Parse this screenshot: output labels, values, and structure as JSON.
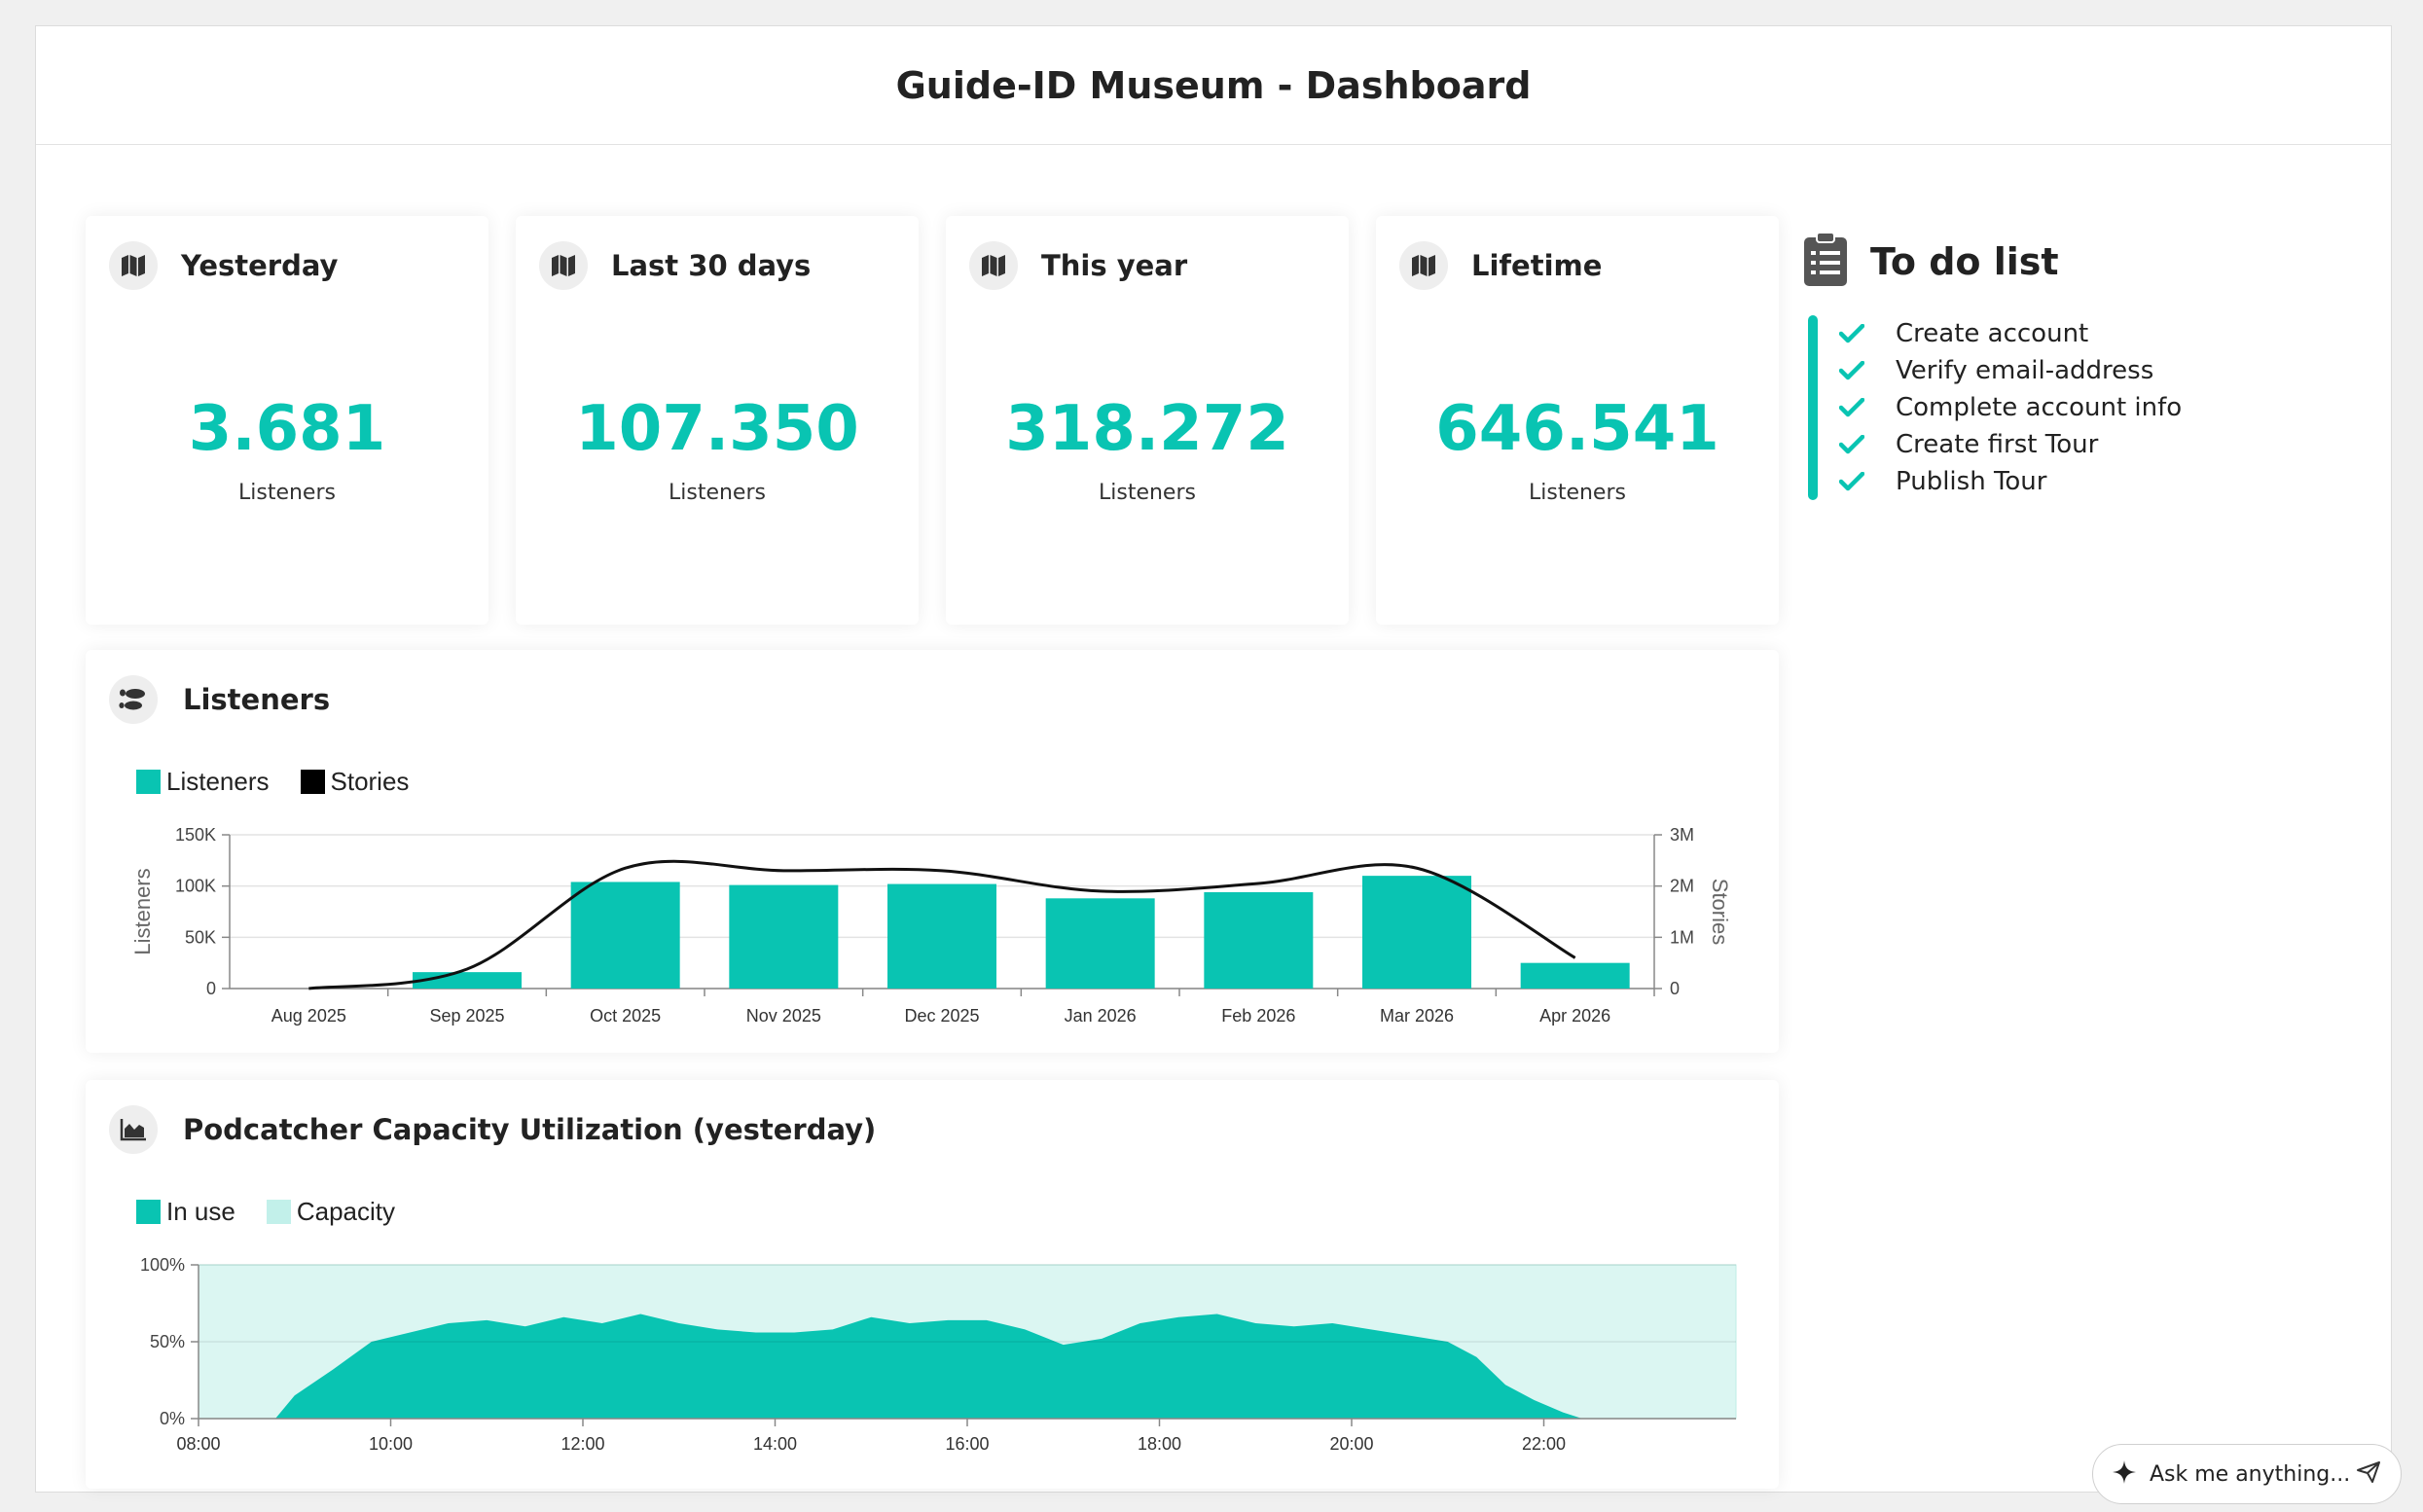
{
  "page": {
    "title": "Guide-ID Museum - Dashboard"
  },
  "stats": [
    {
      "title": "Yesterday",
      "value": "3.681",
      "label": "Listeners",
      "icon": "map-icon"
    },
    {
      "title": "Last 30 days",
      "value": "107.350",
      "label": "Listeners",
      "icon": "map-icon"
    },
    {
      "title": "This year",
      "value": "318.272",
      "label": "Listeners",
      "icon": "map-icon"
    },
    {
      "title": "Lifetime",
      "value": "646.541",
      "label": "Listeners",
      "icon": "map-icon"
    }
  ],
  "listeners_card": {
    "title": "Listeners",
    "icon": "footsteps-icon"
  },
  "capacity_card": {
    "title": "Podcatcher Capacity Utilization (yesterday)",
    "icon": "area-chart-icon"
  },
  "todo": {
    "title": "To do list",
    "icon": "clipboard-list-icon",
    "items": [
      "Create account",
      "Verify email-address",
      "Complete account info",
      "Create first Tour",
      "Publish Tour"
    ]
  },
  "assistant": {
    "placeholder": "Ask me anything...",
    "icon": "sparkle-icon",
    "send_icon": "send-icon"
  },
  "colors": {
    "accent": "#09c4b2",
    "capacity": "#d9f5f1",
    "stories": "#000000"
  },
  "chart_data": [
    {
      "type": "bar",
      "categories": [
        "Aug 2025",
        "Sep 2025",
        "Oct 2025",
        "Nov 2025",
        "Dec 2025",
        "Jan 2026",
        "Feb 2026",
        "Mar 2026",
        "Apr 2026"
      ],
      "series": [
        {
          "name": "Listeners",
          "type": "bar",
          "axis": "left",
          "values": [
            0,
            16000,
            104000,
            101000,
            102000,
            88000,
            94000,
            110000,
            25000
          ]
        },
        {
          "name": "Stories",
          "type": "line",
          "axis": "right",
          "values": [
            0,
            380000,
            2350000,
            2300000,
            2300000,
            1900000,
            2050000,
            2350000,
            600000
          ]
        }
      ],
      "ylabel": "Listeners",
      "y2label": "Stories",
      "ylim": [
        0,
        150000
      ],
      "y2lim": [
        0,
        3000000
      ],
      "yticks": [
        "0",
        "50K",
        "100K",
        "150K"
      ],
      "y2ticks": [
        "0",
        "1M",
        "2M",
        "3M"
      ],
      "legend": "top-left",
      "grid": true
    },
    {
      "type": "area",
      "xticks": [
        "08:00",
        "10:00",
        "12:00",
        "14:00",
        "16:00",
        "18:00",
        "20:00",
        "22:00"
      ],
      "xlim": [
        8,
        24
      ],
      "ylim": [
        0,
        100
      ],
      "yticks": [
        "0%",
        "50%",
        "100%"
      ],
      "series": [
        {
          "name": "In use",
          "x": [
            8,
            8.8,
            9.0,
            9.4,
            9.8,
            10.2,
            10.6,
            11.0,
            11.4,
            11.8,
            12.2,
            12.6,
            13.0,
            13.4,
            13.8,
            14.2,
            14.6,
            15.0,
            15.4,
            15.8,
            16.2,
            16.6,
            17.0,
            17.4,
            17.8,
            18.2,
            18.6,
            19.0,
            19.4,
            19.8,
            20.2,
            20.6,
            21.0,
            21.3,
            21.6,
            21.9,
            22.2,
            22.4,
            24
          ],
          "values": [
            0,
            0,
            15,
            32,
            50,
            56,
            62,
            64,
            60,
            66,
            62,
            68,
            62,
            58,
            56,
            56,
            58,
            66,
            62,
            64,
            64,
            58,
            48,
            52,
            62,
            66,
            68,
            62,
            60,
            62,
            58,
            54,
            50,
            40,
            22,
            12,
            4,
            0,
            0
          ]
        },
        {
          "name": "Capacity",
          "values": [
            100
          ]
        }
      ],
      "legend": "top-left",
      "grid": true
    }
  ]
}
